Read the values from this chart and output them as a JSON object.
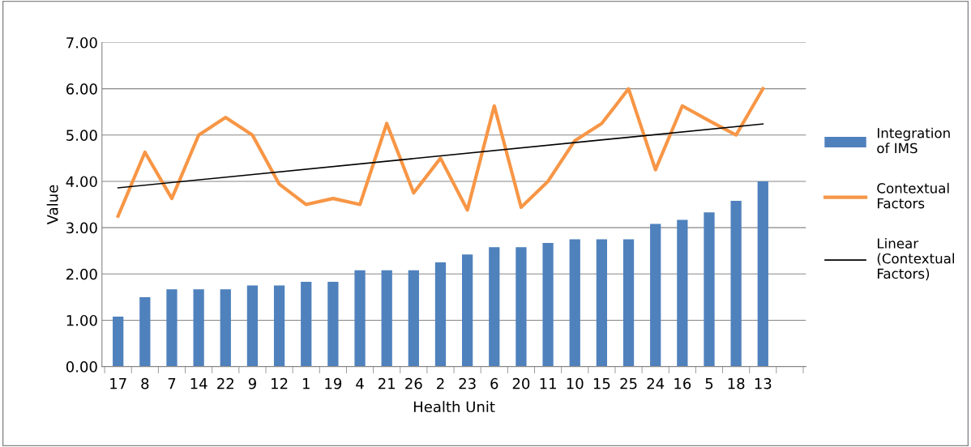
{
  "chart_data": {
    "type": "bar",
    "xlabel": "Health Unit",
    "ylabel": "Value",
    "categories": [
      "17",
      "8",
      "7",
      "14",
      "22",
      "9",
      "12",
      "1",
      "19",
      "4",
      "21",
      "26",
      "2",
      "23",
      "6",
      "20",
      "11",
      "10",
      "15",
      "25",
      "24",
      "16",
      "5",
      "18",
      "13"
    ],
    "series": [
      {
        "name": "Integration of IMS",
        "color": "#4f81bd",
        "values": [
          1.08,
          1.5,
          1.67,
          1.67,
          1.67,
          1.75,
          1.75,
          1.83,
          1.83,
          2.08,
          2.08,
          2.08,
          2.25,
          2.42,
          2.58,
          2.58,
          2.67,
          2.75,
          2.75,
          2.75,
          3.08,
          3.17,
          3.33,
          3.58,
          4.0
        ]
      },
      {
        "name": "Contextual Factors",
        "type": "line",
        "color": "#f79646",
        "values": [
          3.25,
          4.63,
          3.63,
          5.0,
          5.38,
          5.0,
          3.94,
          3.5,
          3.63,
          3.5,
          5.25,
          3.75,
          4.5,
          3.38,
          5.63,
          3.44,
          4.0,
          4.88,
          5.25,
          6.0,
          4.25,
          5.63,
          5.31,
          5.0,
          6.0
        ]
      },
      {
        "name": "Linear (Contextual Factors)",
        "type": "line",
        "color": "#000000",
        "x": [
          "17",
          "13"
        ],
        "values": [
          3.86,
          5.24
        ]
      }
    ],
    "ylim": [
      0,
      7
    ],
    "yticks": [
      {
        "value": 0,
        "label": "0.00"
      },
      {
        "value": 1,
        "label": "1.00"
      },
      {
        "value": 2,
        "label": "2.00"
      },
      {
        "value": 3,
        "label": "3.00"
      },
      {
        "value": 4,
        "label": "4.00"
      },
      {
        "value": 5,
        "label": "5.00"
      },
      {
        "value": 6,
        "label": "6.00"
      },
      {
        "value": 7,
        "label": "7.00"
      }
    ],
    "grid": "y",
    "legend": "right"
  }
}
